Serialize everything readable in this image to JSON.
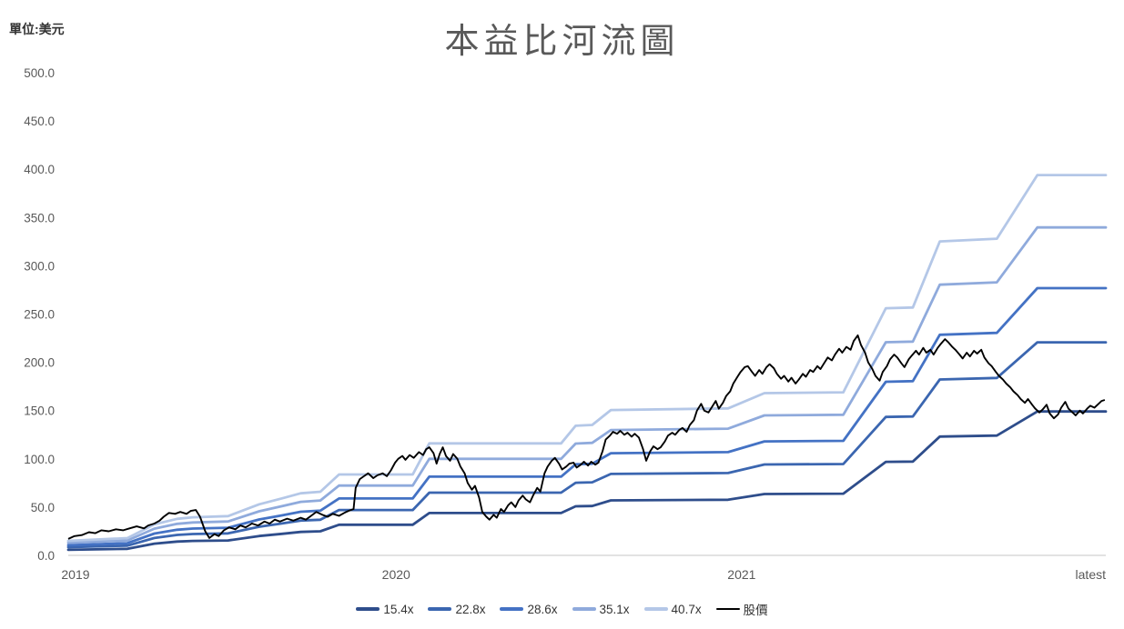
{
  "header": {
    "title": "本益比河流圖",
    "unit_label": "單位:美元"
  },
  "chart_data": {
    "type": "line",
    "title": "本益比河流圖",
    "unit": "單位:美元",
    "grid": false,
    "legend_position": "bottom-center",
    "y_axis": {
      "min": 0,
      "max": 500,
      "step": 50,
      "decimals": 1,
      "tick_labels": [
        "0.0",
        "50.0",
        "100.0",
        "150.0",
        "200.0",
        "250.0",
        "300.0",
        "350.0",
        "400.0",
        "450.0",
        "500.0"
      ]
    },
    "x_axis": {
      "ticks": [
        {
          "label": "2019",
          "f": 0.007,
          "anchor": "middle"
        },
        {
          "label": "2020",
          "f": 0.316,
          "anchor": "middle"
        },
        {
          "label": "2021",
          "f": 0.649,
          "anchor": "middle"
        },
        {
          "label": "latest",
          "f": 1.0,
          "anchor": "end"
        }
      ]
    },
    "pe_bands": {
      "description": "band value = eps * multiple; eps checkpoints as [x_fraction, eps]",
      "eps_checkpoints": [
        [
          0.0,
          0.37
        ],
        [
          0.057,
          0.44
        ],
        [
          0.083,
          0.79
        ],
        [
          0.105,
          0.93
        ],
        [
          0.12,
          0.97
        ],
        [
          0.154,
          1.0
        ],
        [
          0.184,
          1.3
        ],
        [
          0.206,
          1.45
        ],
        [
          0.224,
          1.58
        ],
        [
          0.243,
          1.62
        ],
        [
          0.261,
          2.06
        ],
        [
          0.332,
          2.06
        ],
        [
          0.348,
          2.85
        ],
        [
          0.475,
          2.85
        ],
        [
          0.489,
          3.3
        ],
        [
          0.505,
          3.32
        ],
        [
          0.523,
          3.7
        ],
        [
          0.636,
          3.74
        ],
        [
          0.671,
          4.13
        ],
        [
          0.747,
          4.15
        ],
        [
          0.788,
          6.29
        ],
        [
          0.814,
          6.31
        ],
        [
          0.84,
          7.99
        ],
        [
          0.895,
          8.06
        ],
        [
          0.934,
          9.68
        ],
        [
          1.0,
          9.68
        ]
      ],
      "series": [
        {
          "label": "15.4x",
          "multiple": 15.4,
          "color": "#2E4D8B",
          "latest_value": 149.1
        },
        {
          "label": "22.8x",
          "multiple": 22.8,
          "color": "#3B66B0",
          "latest_value": 220.7
        },
        {
          "label": "28.6x",
          "multiple": 28.6,
          "color": "#4472C4",
          "latest_value": 276.8
        },
        {
          "label": "35.1x",
          "multiple": 35.1,
          "color": "#8FAADC",
          "latest_value": 339.8
        },
        {
          "label": "40.7x",
          "multiple": 40.7,
          "color": "#B4C7E7",
          "latest_value": 394.0
        }
      ]
    },
    "price_series": {
      "label": "股價",
      "color": "#000000",
      "points": [
        [
          0,
          17
        ],
        [
          0.006,
          20
        ],
        [
          0.013,
          21
        ],
        [
          0.02,
          24
        ],
        [
          0.026,
          23
        ],
        [
          0.032,
          26
        ],
        [
          0.039,
          25
        ],
        [
          0.046,
          27
        ],
        [
          0.053,
          26
        ],
        [
          0.059,
          28
        ],
        [
          0.066,
          30
        ],
        [
          0.073,
          28
        ],
        [
          0.077,
          31
        ],
        [
          0.083,
          33
        ],
        [
          0.088,
          36
        ],
        [
          0.092,
          40
        ],
        [
          0.097,
          44
        ],
        [
          0.103,
          43
        ],
        [
          0.108,
          45
        ],
        [
          0.114,
          43
        ],
        [
          0.118,
          46
        ],
        [
          0.123,
          47
        ],
        [
          0.127,
          40
        ],
        [
          0.132,
          25
        ],
        [
          0.136,
          18
        ],
        [
          0.141,
          22
        ],
        [
          0.145,
          20
        ],
        [
          0.15,
          26
        ],
        [
          0.155,
          29
        ],
        [
          0.161,
          27
        ],
        [
          0.166,
          31
        ],
        [
          0.171,
          29
        ],
        [
          0.177,
          33
        ],
        [
          0.183,
          31
        ],
        [
          0.189,
          35
        ],
        [
          0.194,
          33
        ],
        [
          0.199,
          37
        ],
        [
          0.204,
          35
        ],
        [
          0.211,
          38
        ],
        [
          0.217,
          36
        ],
        [
          0.224,
          39
        ],
        [
          0.229,
          37
        ],
        [
          0.234,
          41
        ],
        [
          0.239,
          45
        ],
        [
          0.245,
          42
        ],
        [
          0.25,
          40
        ],
        [
          0.255,
          43
        ],
        [
          0.261,
          41
        ],
        [
          0.266,
          44
        ],
        [
          0.27,
          46
        ],
        [
          0.275,
          48
        ],
        [
          0.277,
          70
        ],
        [
          0.281,
          79
        ],
        [
          0.285,
          82
        ],
        [
          0.289,
          85
        ],
        [
          0.294,
          80
        ],
        [
          0.298,
          83
        ],
        [
          0.303,
          85
        ],
        [
          0.307,
          82
        ],
        [
          0.311,
          88
        ],
        [
          0.315,
          96
        ],
        [
          0.318,
          100
        ],
        [
          0.322,
          103
        ],
        [
          0.325,
          99
        ],
        [
          0.329,
          104
        ],
        [
          0.333,
          101
        ],
        [
          0.338,
          107
        ],
        [
          0.342,
          104
        ],
        [
          0.345,
          110
        ],
        [
          0.348,
          112
        ],
        [
          0.352,
          106
        ],
        [
          0.355,
          95
        ],
        [
          0.358,
          105
        ],
        [
          0.361,
          112
        ],
        [
          0.364,
          103
        ],
        [
          0.368,
          98
        ],
        [
          0.371,
          105
        ],
        [
          0.375,
          100
        ],
        [
          0.378,
          92
        ],
        [
          0.382,
          85
        ],
        [
          0.385,
          75
        ],
        [
          0.389,
          68
        ],
        [
          0.392,
          72
        ],
        [
          0.396,
          60
        ],
        [
          0.399,
          45
        ],
        [
          0.403,
          40
        ],
        [
          0.406,
          37
        ],
        [
          0.41,
          42
        ],
        [
          0.413,
          39
        ],
        [
          0.417,
          48
        ],
        [
          0.42,
          45
        ],
        [
          0.424,
          52
        ],
        [
          0.427,
          55
        ],
        [
          0.431,
          50
        ],
        [
          0.434,
          57
        ],
        [
          0.438,
          62
        ],
        [
          0.441,
          58
        ],
        [
          0.445,
          55
        ],
        [
          0.448,
          62
        ],
        [
          0.452,
          70
        ],
        [
          0.455,
          66
        ],
        [
          0.459,
          85
        ],
        [
          0.462,
          92
        ],
        [
          0.466,
          98
        ],
        [
          0.469,
          101
        ],
        [
          0.473,
          95
        ],
        [
          0.476,
          89
        ],
        [
          0.48,
          92
        ],
        [
          0.483,
          95
        ],
        [
          0.487,
          96
        ],
        [
          0.49,
          91
        ],
        [
          0.494,
          94
        ],
        [
          0.497,
          97
        ],
        [
          0.501,
          93
        ],
        [
          0.504,
          97
        ],
        [
          0.508,
          94
        ],
        [
          0.511,
          96
        ],
        [
          0.515,
          108
        ],
        [
          0.518,
          120
        ],
        [
          0.522,
          124
        ],
        [
          0.525,
          128
        ],
        [
          0.529,
          126
        ],
        [
          0.532,
          129
        ],
        [
          0.536,
          125
        ],
        [
          0.539,
          127
        ],
        [
          0.543,
          123
        ],
        [
          0.546,
          126
        ],
        [
          0.55,
          122
        ],
        [
          0.554,
          110
        ],
        [
          0.557,
          98
        ],
        [
          0.561,
          108
        ],
        [
          0.564,
          113
        ],
        [
          0.568,
          110
        ],
        [
          0.571,
          112
        ],
        [
          0.575,
          118
        ],
        [
          0.578,
          124
        ],
        [
          0.582,
          127
        ],
        [
          0.585,
          125
        ],
        [
          0.589,
          130
        ],
        [
          0.592,
          132
        ],
        [
          0.596,
          128
        ],
        [
          0.599,
          135
        ],
        [
          0.603,
          140
        ],
        [
          0.606,
          150
        ],
        [
          0.61,
          157
        ],
        [
          0.613,
          150
        ],
        [
          0.617,
          148
        ],
        [
          0.62,
          153
        ],
        [
          0.624,
          160
        ],
        [
          0.627,
          152
        ],
        [
          0.631,
          158
        ],
        [
          0.634,
          165
        ],
        [
          0.638,
          170
        ],
        [
          0.641,
          178
        ],
        [
          0.645,
          185
        ],
        [
          0.648,
          190
        ],
        [
          0.652,
          195
        ],
        [
          0.655,
          196
        ],
        [
          0.659,
          190
        ],
        [
          0.662,
          186
        ],
        [
          0.666,
          192
        ],
        [
          0.669,
          188
        ],
        [
          0.673,
          195
        ],
        [
          0.676,
          198
        ],
        [
          0.68,
          194
        ],
        [
          0.683,
          188
        ],
        [
          0.687,
          183
        ],
        [
          0.69,
          186
        ],
        [
          0.694,
          180
        ],
        [
          0.697,
          184
        ],
        [
          0.701,
          178
        ],
        [
          0.704,
          182
        ],
        [
          0.708,
          188
        ],
        [
          0.711,
          185
        ],
        [
          0.715,
          192
        ],
        [
          0.718,
          190
        ],
        [
          0.722,
          196
        ],
        [
          0.725,
          193
        ],
        [
          0.729,
          200
        ],
        [
          0.732,
          205
        ],
        [
          0.736,
          202
        ],
        [
          0.739,
          208
        ],
        [
          0.743,
          214
        ],
        [
          0.746,
          210
        ],
        [
          0.75,
          216
        ],
        [
          0.754,
          213
        ],
        [
          0.757,
          222
        ],
        [
          0.761,
          228
        ],
        [
          0.764,
          218
        ],
        [
          0.768,
          210
        ],
        [
          0.771,
          200
        ],
        [
          0.775,
          193
        ],
        [
          0.778,
          186
        ],
        [
          0.782,
          181
        ],
        [
          0.785,
          190
        ],
        [
          0.789,
          196
        ],
        [
          0.792,
          203
        ],
        [
          0.796,
          208
        ],
        [
          0.799,
          205
        ],
        [
          0.803,
          199
        ],
        [
          0.806,
          195
        ],
        [
          0.81,
          203
        ],
        [
          0.813,
          207
        ],
        [
          0.817,
          212
        ],
        [
          0.82,
          208
        ],
        [
          0.824,
          215
        ],
        [
          0.827,
          210
        ],
        [
          0.831,
          213
        ],
        [
          0.834,
          208
        ],
        [
          0.838,
          215
        ],
        [
          0.841,
          219
        ],
        [
          0.845,
          224
        ],
        [
          0.848,
          221
        ],
        [
          0.852,
          216
        ],
        [
          0.855,
          213
        ],
        [
          0.859,
          208
        ],
        [
          0.862,
          204
        ],
        [
          0.866,
          210
        ],
        [
          0.869,
          206
        ],
        [
          0.873,
          212
        ],
        [
          0.876,
          209
        ],
        [
          0.88,
          213
        ],
        [
          0.883,
          205
        ],
        [
          0.887,
          199
        ],
        [
          0.89,
          196
        ],
        [
          0.894,
          190
        ],
        [
          0.897,
          186
        ],
        [
          0.901,
          182
        ],
        [
          0.904,
          178
        ],
        [
          0.908,
          174
        ],
        [
          0.911,
          170
        ],
        [
          0.915,
          166
        ],
        [
          0.918,
          162
        ],
        [
          0.922,
          158
        ],
        [
          0.925,
          162
        ],
        [
          0.929,
          156
        ],
        [
          0.932,
          152
        ],
        [
          0.936,
          148
        ],
        [
          0.939,
          151
        ],
        [
          0.943,
          156
        ],
        [
          0.946,
          147
        ],
        [
          0.95,
          142
        ],
        [
          0.954,
          146
        ],
        [
          0.957,
          153
        ],
        [
          0.961,
          159
        ],
        [
          0.964,
          152
        ],
        [
          0.968,
          148
        ],
        [
          0.971,
          145
        ],
        [
          0.975,
          150
        ],
        [
          0.978,
          147
        ],
        [
          0.982,
          152
        ],
        [
          0.985,
          155
        ],
        [
          0.989,
          153
        ],
        [
          0.993,
          157
        ],
        [
          0.996,
          160
        ],
        [
          0.999,
          161
        ]
      ]
    },
    "legend": [
      "15.4x",
      "22.8x",
      "28.6x",
      "35.1x",
      "40.7x",
      "股價"
    ],
    "axis_line_color": "#D9D9D9",
    "label_color": "#595959"
  }
}
